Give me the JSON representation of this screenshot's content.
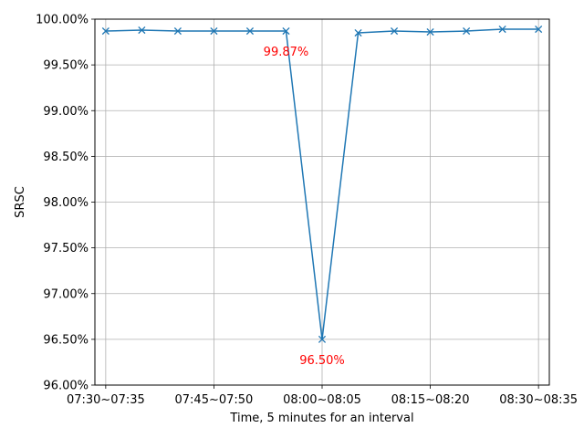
{
  "chart_data": {
    "type": "line",
    "title": "",
    "xlabel": "Time, 5 minutes for an interval",
    "ylabel": "SRSC",
    "x": [
      "07:30~07:35",
      "07:35~07:40",
      "07:40~07:45",
      "07:45~07:50",
      "07:50~07:55",
      "07:55~08:00",
      "08:00~08:05",
      "08:05~08:10",
      "08:10~08:15",
      "08:15~08:20",
      "08:20~08:25",
      "08:25~08:30",
      "08:30~08:35"
    ],
    "x_tick_labels": [
      "07:30~07:35",
      "07:45~07:50",
      "08:00~08:05",
      "08:15~08:20",
      "08:30~08:35"
    ],
    "x_tick_indices": [
      0,
      3,
      6,
      9,
      12
    ],
    "series": [
      {
        "values": [
          99.87,
          99.88,
          99.87,
          99.87,
          99.87,
          99.87,
          96.5,
          99.85,
          99.87,
          99.86,
          99.87,
          99.89,
          99.89
        ],
        "color": "#1f77b4",
        "marker": "x"
      }
    ],
    "ylim": [
      96.0,
      100.0
    ],
    "y_ticks": [
      96.0,
      96.5,
      97.0,
      97.5,
      98.0,
      98.5,
      99.0,
      99.5,
      100.0
    ],
    "y_tick_labels": [
      "96.00%",
      "96.50%",
      "97.00%",
      "97.50%",
      "98.00%",
      "98.50%",
      "99.00%",
      "99.50%",
      "100.00%"
    ],
    "grid": true,
    "annotations": [
      {
        "text": "99.87%",
        "x_index": 5,
        "y": 99.87,
        "color": "#ff0000"
      },
      {
        "text": "96.50%",
        "x_index": 6,
        "y": 96.5,
        "color": "#ff0000"
      }
    ]
  }
}
